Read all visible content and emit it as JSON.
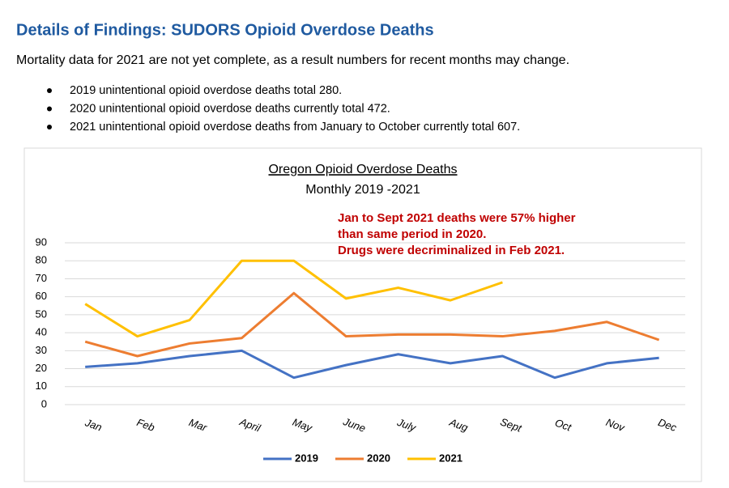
{
  "header": {
    "title": "Details of Findings: SUDORS Opioid Overdose Deaths"
  },
  "intro": "Mortality data for 2021 are not yet complete, as a result numbers for recent months may change.",
  "bullets": [
    "2019 unintentional opioid overdose deaths total 280.",
    "2020 unintentional opioid overdose deaths currently total 472.",
    "2021 unintentional opioid overdose deaths from January to October currently total 607."
  ],
  "chart_data": {
    "type": "line",
    "title": "Oregon Opioid Overdose Deaths",
    "subtitle": "Monthly 2019 -2021",
    "annotations": [
      "Jan to Sept 2021 deaths were 57% higher",
      "than same period in 2020.",
      "Drugs were decriminalized in Feb 2021."
    ],
    "categories": [
      "Jan",
      "Feb",
      "Mar",
      "April",
      "May",
      "June",
      "July",
      "Aug",
      "Sept",
      "Oct",
      "Nov",
      "Dec"
    ],
    "series": [
      {
        "name": "2019",
        "color": "#4472c4",
        "values": [
          21,
          23,
          27,
          30,
          15,
          22,
          28,
          23,
          27,
          15,
          23,
          26
        ]
      },
      {
        "name": "2020",
        "color": "#ed7d31",
        "values": [
          35,
          27,
          34,
          37,
          62,
          38,
          39,
          39,
          38,
          41,
          46,
          36
        ]
      },
      {
        "name": "2021",
        "color": "#ffc000",
        "values": [
          56,
          38,
          47,
          80,
          80,
          59,
          65,
          58,
          68,
          null,
          null,
          null
        ]
      }
    ],
    "ylim": [
      0,
      90
    ],
    "yticks": [
      0,
      10,
      20,
      30,
      40,
      50,
      60,
      70,
      80,
      90
    ],
    "grid": true,
    "legend": "bottom"
  }
}
